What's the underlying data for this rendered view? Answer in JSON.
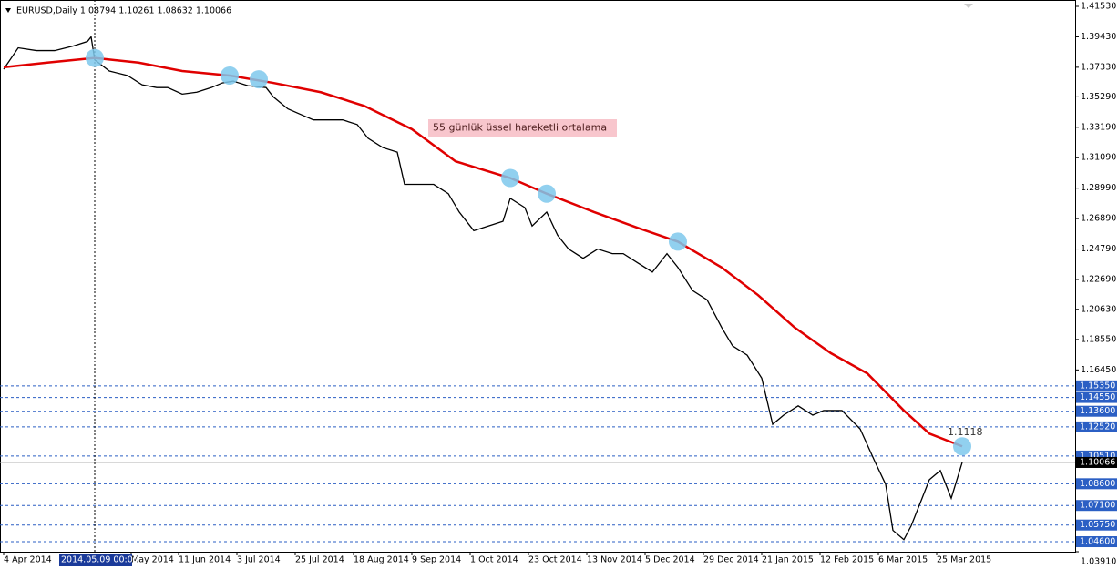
{
  "chart_data": {
    "type": "line",
    "header": "EURUSD,Daily  1.08794 1.10261 1.08632 1.10066",
    "annotation": "55 günlük üssel hareketli ortalama",
    "series": [
      {
        "color": "#000000",
        "x": [
          0,
          4,
          9,
          14,
          19,
          23,
          24,
          25,
          29,
          34,
          38,
          42,
          45,
          49,
          53,
          57,
          60,
          63,
          67,
          72,
          74,
          78,
          82,
          85,
          89,
          93,
          97,
          100,
          104,
          108,
          110,
          114,
          118,
          122,
          125,
          129,
          133,
          137,
          139,
          143,
          145,
          149,
          152,
          155,
          159,
          163,
          167,
          170,
          174,
          178,
          182,
          185,
          189,
          193,
          197,
          200,
          204,
          208,
          211,
          214,
          218,
          222,
          225,
          230,
          235,
          239,
          242,
          244,
          247,
          249,
          252,
          254,
          257,
          260,
          263
        ],
        "values": [
          1.372,
          1.3867,
          1.3848,
          1.3848,
          1.3879,
          1.3911,
          1.3943,
          1.3784,
          1.3707,
          1.3676,
          1.3612,
          1.3593,
          1.3593,
          1.3548,
          1.3561,
          1.3593,
          1.3625,
          1.3637,
          1.3606,
          1.3593,
          1.3529,
          1.3446,
          1.3402,
          1.337,
          1.337,
          1.337,
          1.3338,
          1.3243,
          1.3179,
          1.3147,
          1.2925,
          1.2925,
          1.2925,
          1.2861,
          1.2734,
          1.2606,
          1.2638,
          1.267,
          1.2829,
          1.2765,
          1.2638,
          1.2734,
          1.2574,
          1.2479,
          1.2415,
          1.2479,
          1.2447,
          1.2447,
          1.2383,
          1.232,
          1.2447,
          1.2352,
          1.2193,
          1.2129,
          1.1938,
          1.1811,
          1.1747,
          1.1588,
          1.127,
          1.1333,
          1.1397,
          1.1333,
          1.1365,
          1.1365,
          1.1238,
          1.1015,
          1.0856,
          1.0538,
          1.0474,
          1.0569,
          1.076,
          1.0888,
          1.0951,
          1.076,
          1.10066
        ]
      },
      {
        "color": "#e00000",
        "x": [
          0,
          12,
          25,
          37,
          49,
          62,
          74,
          87,
          99,
          112,
          124,
          139,
          149,
          162,
          174,
          185,
          197,
          207,
          217,
          227,
          237,
          247,
          254,
          263
        ],
        "values": [
          1.3733,
          1.3765,
          1.3797,
          1.3765,
          1.3707,
          1.3676,
          1.3625,
          1.3561,
          1.3466,
          1.3306,
          1.3084,
          1.2969,
          1.2861,
          1.2734,
          1.2625,
          1.253,
          1.2352,
          1.2161,
          1.1938,
          1.176,
          1.162,
          1.1365,
          1.1206,
          1.1118
        ]
      }
    ],
    "touch_points": {
      "color": "#7ec8ec",
      "x": [
        25,
        62,
        70,
        139,
        149,
        185,
        263
      ],
      "values": [
        1.3797,
        1.3676,
        1.365,
        1.2969,
        1.2861,
        1.253,
        1.1118
      ]
    },
    "last_ema_label": {
      "value": 1.1118,
      "label": "1.1118"
    },
    "xlim": [
      -1,
      294
    ],
    "ylim": [
      1.0391,
      1.4197
    ],
    "xticks": [
      {
        "value": 0,
        "label": "4 Apr 2014"
      },
      {
        "value": 35,
        "label": "May 2014"
      },
      {
        "value": 48,
        "label": "11 Jun 2014"
      },
      {
        "value": 64,
        "label": "3 Jul 2014"
      },
      {
        "value": 80,
        "label": "25 Jul 2014"
      },
      {
        "value": 96,
        "label": "18 Aug 2014"
      },
      {
        "value": 112,
        "label": "9 Sep 2014"
      },
      {
        "value": 128,
        "label": "1 Oct 2014"
      },
      {
        "value": 144,
        "label": "23 Oct 2014"
      },
      {
        "value": 160,
        "label": "13 Nov 2014"
      },
      {
        "value": 176,
        "label": "5 Dec 2014"
      },
      {
        "value": 192,
        "label": "29 Dec 2014"
      },
      {
        "value": 208,
        "label": "21 Jan 2015"
      },
      {
        "value": 224,
        "label": "12 Feb 2015"
      },
      {
        "value": 240,
        "label": "6 Mar 2015"
      },
      {
        "value": 256,
        "label": "25 Mar 2015"
      }
    ],
    "yticks": [
      {
        "value": 1.4153,
        "label": "1.41530"
      },
      {
        "value": 1.3943,
        "label": "1.39430"
      },
      {
        "value": 1.3733,
        "label": "1.37330"
      },
      {
        "value": 1.3529,
        "label": "1.35290"
      },
      {
        "value": 1.3319,
        "label": "1.33190"
      },
      {
        "value": 1.3109,
        "label": "1.31090"
      },
      {
        "value": 1.2899,
        "label": "1.28990"
      },
      {
        "value": 1.2689,
        "label": "1.26890"
      },
      {
        "value": 1.2479,
        "label": "1.24790"
      },
      {
        "value": 1.2269,
        "label": "1.22690"
      },
      {
        "value": 1.2063,
        "label": "1.20630"
      },
      {
        "value": 1.1855,
        "label": "1.18550"
      },
      {
        "value": 1.1645,
        "label": "1.16450"
      },
      {
        "value": 1.0391,
        "label": "1.03910"
      }
    ],
    "levels": {
      "color": "#2b5fc4",
      "values": [
        {
          "value": 1.1535,
          "label": "1.15350"
        },
        {
          "value": 1.1455,
          "label": "1.14550"
        },
        {
          "value": 1.136,
          "label": "1.13600"
        },
        {
          "value": 1.1252,
          "label": "1.12520"
        },
        {
          "value": 1.1051,
          "label": "1.10510"
        },
        {
          "value": 1.086,
          "label": "1.08600"
        },
        {
          "value": 1.071,
          "label": "1.07100"
        },
        {
          "value": 1.0575,
          "label": "1.05750"
        },
        {
          "value": 1.046,
          "label": "1.04600"
        }
      ]
    },
    "current_price": 1.10066,
    "crosshair": {
      "value": 25,
      "label": "2014.05.09 00:00"
    }
  }
}
